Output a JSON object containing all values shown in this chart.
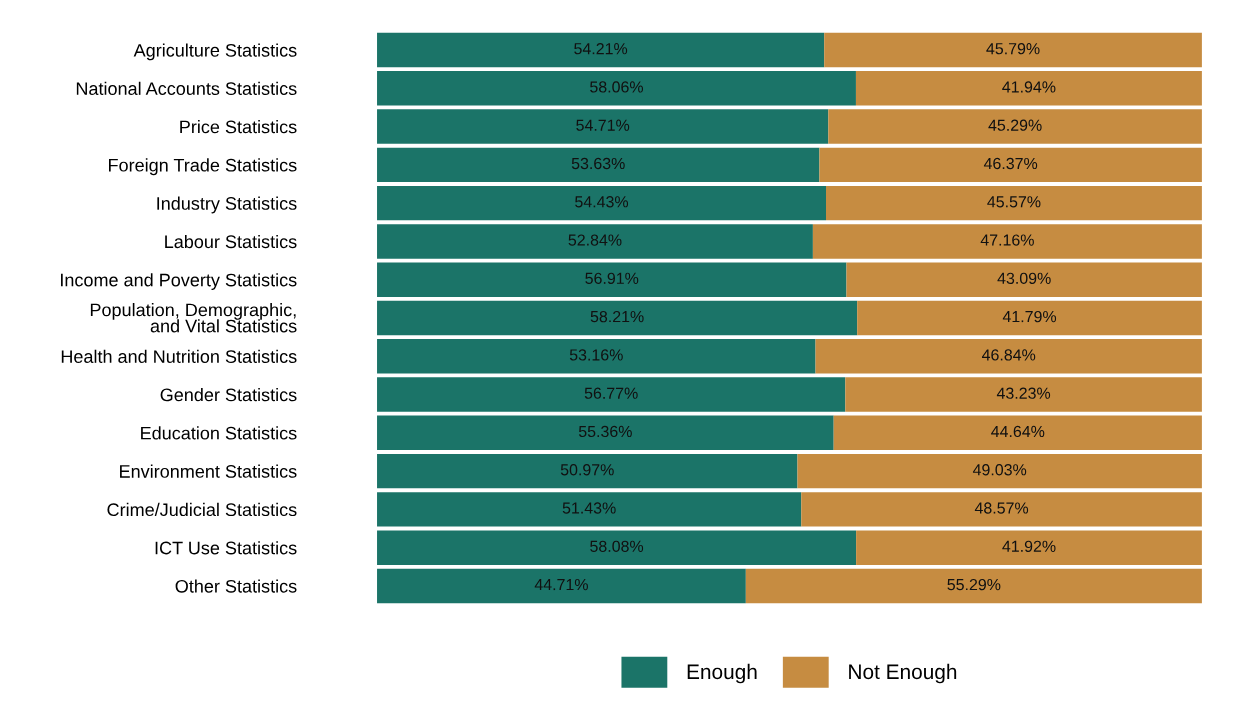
{
  "chart_data": {
    "type": "bar",
    "orientation": "horizontal",
    "stacked": true,
    "data_labels": true,
    "legend": "bottom",
    "tick_labels": "y",
    "grid": false,
    "categories": [
      "Agriculture Statistics",
      "National Accounts Statistics",
      "Price Statistics",
      "Foreign Trade Statistics",
      "Industry Statistics",
      "Labour Statistics",
      "Income and Poverty Statistics",
      "Population, Demographic,\nand Vital Statistics",
      "Health and Nutrition Statistics",
      "Gender Statistics",
      "Education Statistics",
      "Environment Statistics",
      "Crime/Judicial Statistics",
      "ICT Use Statistics",
      "Other Statistics"
    ],
    "series": [
      {
        "name": "Enough",
        "color": "#1b7468",
        "values": [
          54.21,
          58.06,
          54.71,
          53.63,
          54.43,
          52.84,
          56.91,
          58.21,
          53.16,
          56.77,
          55.36,
          50.97,
          51.43,
          58.08,
          44.71
        ],
        "value_labels": [
          "54.21%",
          "58.06%",
          "54.71%",
          "53.63%",
          "54.43%",
          "52.84%",
          "56.91%",
          "58.21%",
          "53.16%",
          "56.77%",
          "55.36%",
          "50.97%",
          "51.43%",
          "58.08%",
          "44.71%"
        ]
      },
      {
        "name": "Not Enough",
        "color": "#c68c41",
        "values": [
          45.79,
          41.94,
          45.29,
          46.37,
          45.57,
          47.16,
          43.09,
          41.79,
          46.84,
          43.23,
          44.64,
          49.03,
          48.57,
          41.92,
          55.29
        ],
        "value_labels": [
          "45.79%",
          "41.94%",
          "45.29%",
          "46.37%",
          "45.57%",
          "47.16%",
          "43.09%",
          "41.79%",
          "46.84%",
          "43.23%",
          "44.64%",
          "49.03%",
          "48.57%",
          "41.92%",
          "55.29%"
        ]
      }
    ]
  }
}
